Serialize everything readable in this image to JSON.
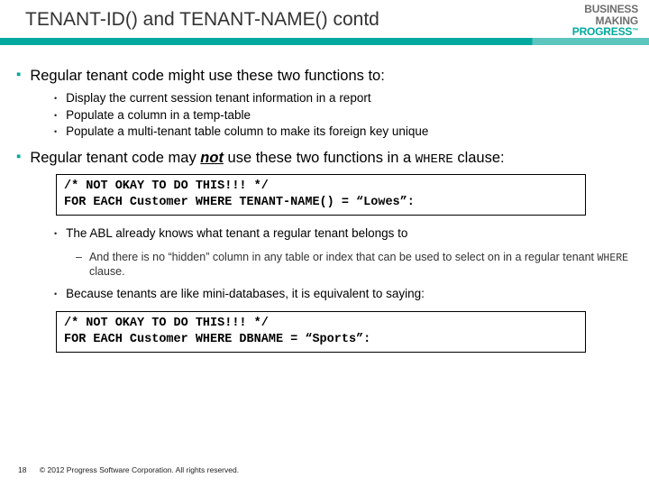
{
  "header": {
    "title": "TENANT-ID() and TENANT-NAME()  contd",
    "logo": {
      "line1": "BUSINESS",
      "line2": "MAKING",
      "line3": "PROGRESS",
      "tm": "™"
    },
    "accent_color_main": "#00a99d",
    "accent_color_light": "#5bc5be"
  },
  "body": {
    "bullet1": {
      "text": "Regular tenant code might use these two functions to:",
      "subs": [
        "Display the current session tenant information in a report",
        "Populate a column in a temp-table",
        "Populate a multi-tenant table column to make its foreign key unique"
      ]
    },
    "bullet2": {
      "pre": "Regular tenant code may ",
      "not": "not",
      "mid": " use these two functions in a ",
      "where": "WHERE",
      "post": " clause:"
    },
    "codebox1": {
      "line1": "/* NOT OKAY TO DO THIS!!! */",
      "line2": "FOR EACH Customer WHERE TENANT-NAME() = “Lowes”:"
    },
    "sub_after_code1": {
      "text": "The ABL already knows what tenant a regular tenant belongs to",
      "subsub_pre": "And there is no “hidden” column in any table or index that can be used to select on in a regular tenant ",
      "subsub_where": "WHERE",
      "subsub_post": " clause."
    },
    "sub_after_code2": "Because tenants are like mini-databases, it is equivalent to saying:",
    "codebox2": {
      "line1": "/* NOT OKAY TO DO THIS!!! */",
      "line2": "FOR EACH Customer WHERE DBNAME = “Sports”:"
    }
  },
  "footer": {
    "page": "18",
    "copyright": "© 2012 Progress Software Corporation. All rights reserved."
  }
}
